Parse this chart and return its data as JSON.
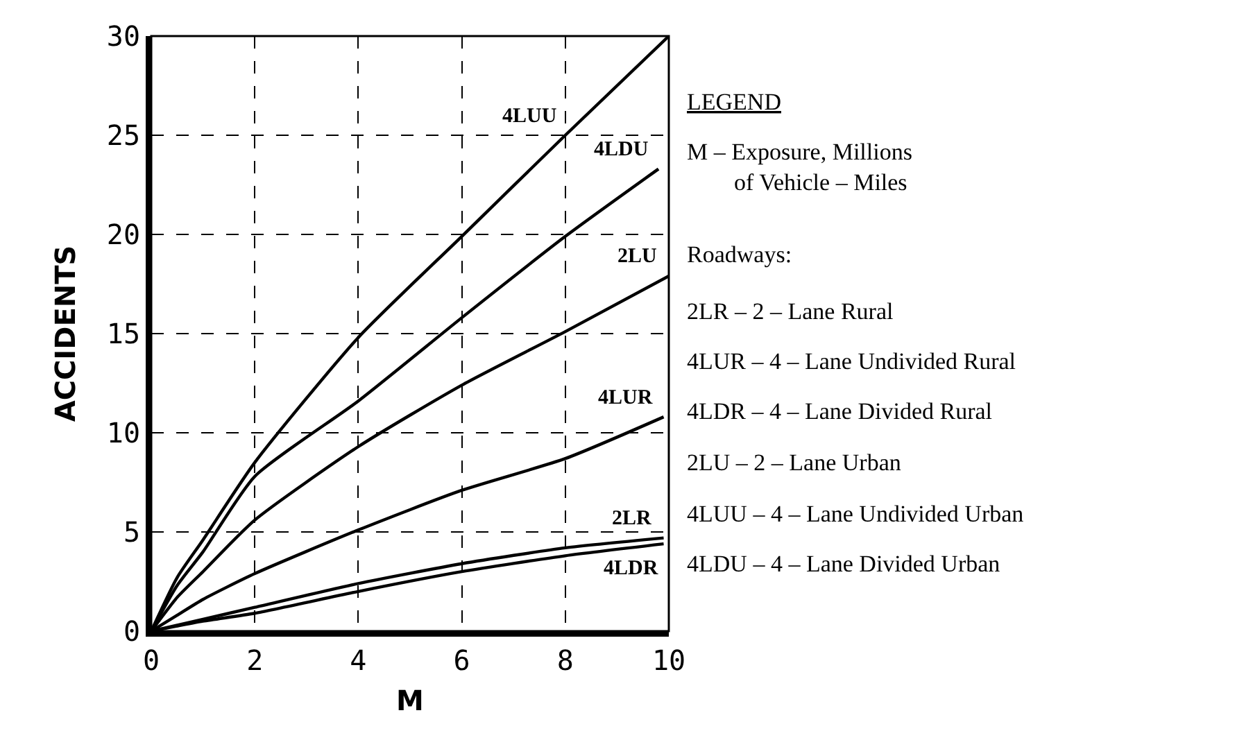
{
  "chart_data": {
    "type": "line",
    "xlabel": "M",
    "ylabel": "ACCIDENTS",
    "xlim": [
      0,
      10
    ],
    "ylim": [
      0,
      30
    ],
    "xticks": [
      0,
      2,
      4,
      6,
      8,
      10
    ],
    "yticks": [
      0,
      5,
      10,
      15,
      20,
      25,
      30
    ],
    "grid": true,
    "line_style": "solid",
    "marker": "none",
    "series": [
      {
        "name": "4LUU",
        "color": "#000000",
        "x": [
          0,
          0.5,
          1,
          2,
          4,
          6,
          8,
          10
        ],
        "values": [
          0,
          2.7,
          4.6,
          8.5,
          14.8,
          19.9,
          25,
          30
        ]
      },
      {
        "name": "4LDU",
        "color": "#000000",
        "x": [
          0,
          0.5,
          1,
          2,
          4,
          6,
          8,
          9.8
        ],
        "values": [
          0,
          2.3,
          4.0,
          7.8,
          11.6,
          15.8,
          19.9,
          23.3
        ]
      },
      {
        "name": "2LU",
        "color": "#000000",
        "x": [
          0,
          0.5,
          1,
          2,
          4,
          6,
          8,
          10
        ],
        "values": [
          0,
          1.7,
          3.0,
          5.6,
          9.3,
          12.4,
          15.1,
          17.9
        ]
      },
      {
        "name": "4LUR",
        "color": "#000000",
        "x": [
          0,
          0.5,
          1,
          2,
          4,
          6,
          8,
          9.9
        ],
        "values": [
          0,
          0.8,
          1.6,
          2.9,
          5.1,
          7.1,
          8.7,
          10.8
        ]
      },
      {
        "name": "2LR",
        "color": "#000000",
        "x": [
          0,
          1,
          2,
          4,
          6,
          8,
          9.9
        ],
        "values": [
          0,
          0.6,
          1.2,
          2.4,
          3.4,
          4.2,
          4.7
        ]
      },
      {
        "name": "4LDR",
        "color": "#000000",
        "x": [
          0,
          1,
          2,
          4,
          6,
          8,
          9.9
        ],
        "values": [
          0,
          0.5,
          0.9,
          2.0,
          3.0,
          3.8,
          4.4
        ]
      }
    ],
    "annotations": [
      "LEGEND",
      "M – Exposure, Millions\nof Vehicle – Miles",
      "Roadways:",
      "2LR – 2 – Lane Rural",
      "4LUR – 4 – Lane Undivided Rural",
      "4LDR – 4 – Lane Divided Rural",
      "2LU – 2 – Lane Urban",
      "4LUU – 4 – Lane Undivided Urban",
      "4LDU – 4 – Lane Divided Urban"
    ]
  }
}
